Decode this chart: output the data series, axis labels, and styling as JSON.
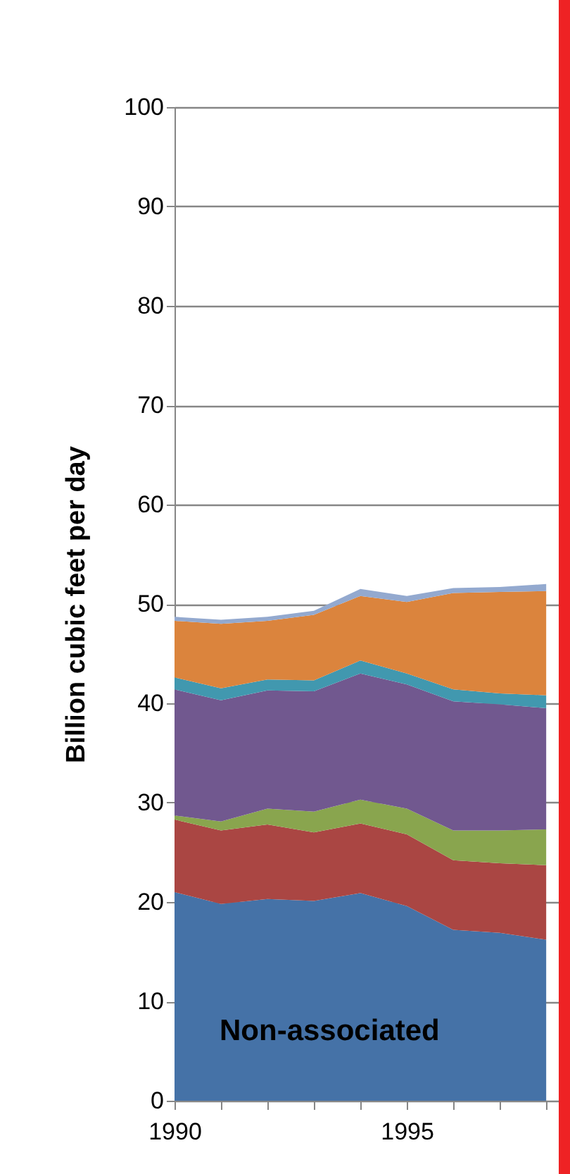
{
  "chart_data": {
    "type": "area",
    "stacked": true,
    "ylabel": "Billion cubic feet per day",
    "x": [
      1990,
      1991,
      1992,
      1993,
      1994,
      1995,
      1996,
      1997,
      1998
    ],
    "xlim": [
      1990,
      1998.27
    ],
    "xticks": [
      1990,
      {
        "value": 1991,
        "label": null
      },
      {
        "value": 1992,
        "label": null
      },
      {
        "value": 1993,
        "label": null
      },
      {
        "value": 1994,
        "label": null
      },
      1995,
      {
        "value": 1996,
        "label": null
      },
      {
        "value": 1997,
        "label": null
      },
      {
        "value": 1998,
        "label": null
      }
    ],
    "ylim": [
      0,
      100
    ],
    "yticks": [
      0,
      10,
      20,
      30,
      40,
      50,
      60,
      70,
      80,
      90,
      100
    ],
    "grid": "y",
    "legend": false,
    "series": [
      {
        "color": "#4572a7",
        "values": [
          21.0,
          19.8,
          20.3,
          20.1,
          20.9,
          19.6,
          17.2,
          16.9,
          16.2
        ]
      },
      {
        "color": "#aa4643",
        "values": [
          7.3,
          7.4,
          7.5,
          6.9,
          7.0,
          7.2,
          7.0,
          7.0,
          7.5
        ]
      },
      {
        "color": "#89a54e",
        "values": [
          0.4,
          0.9,
          1.6,
          2.1,
          2.4,
          2.6,
          3.0,
          3.3,
          3.6
        ]
      },
      {
        "color": "#71588f",
        "values": [
          12.7,
          12.2,
          11.9,
          12.1,
          12.7,
          12.5,
          13.0,
          12.7,
          12.2
        ]
      },
      {
        "color": "#4198af",
        "values": [
          1.2,
          1.2,
          1.1,
          1.1,
          1.3,
          1.1,
          1.2,
          1.1,
          1.3
        ]
      },
      {
        "color": "#db843d",
        "values": [
          5.7,
          6.5,
          5.9,
          6.6,
          6.5,
          7.2,
          9.7,
          10.2,
          10.5
        ]
      },
      {
        "color": "#93a9cf",
        "values": [
          0.4,
          0.4,
          0.4,
          0.4,
          0.7,
          0.6,
          0.5,
          0.5,
          0.7
        ]
      }
    ],
    "annotations": [
      "Non-associated"
    ]
  }
}
